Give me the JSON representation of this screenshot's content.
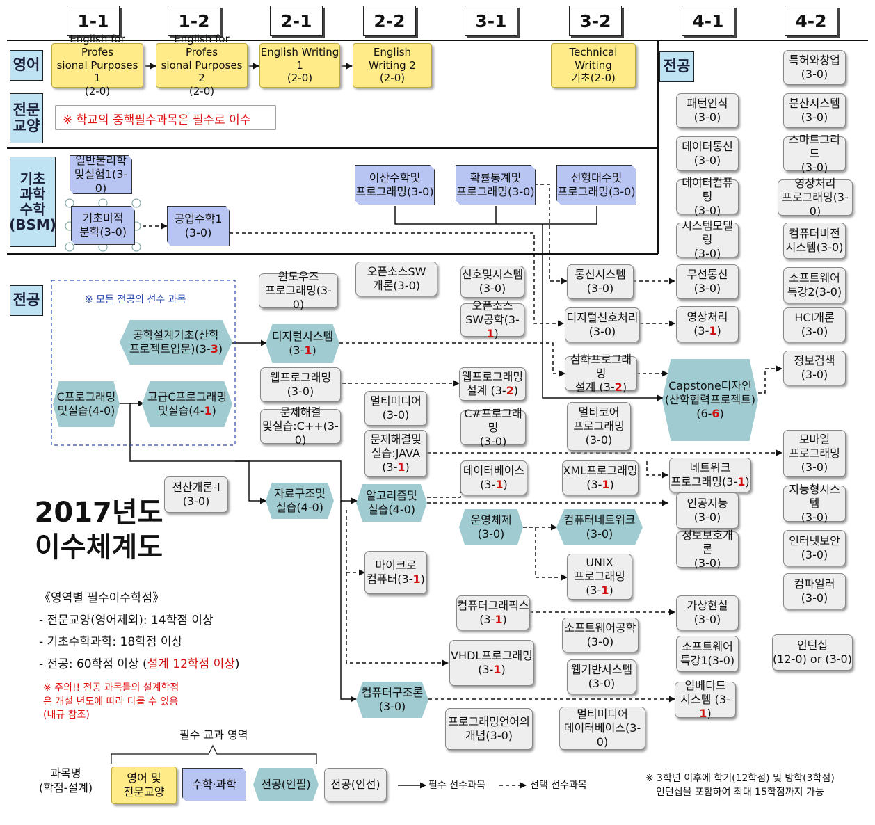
{
  "semesters": [
    "1-1",
    "1-2",
    "2-1",
    "2-2",
    "3-1",
    "3-2",
    "4-1",
    "4-2"
  ],
  "areas": {
    "english": "영어",
    "liberal": "전문\n교양",
    "bsm": "기초\n과학\n수학\n(BSM)",
    "major_left": "전공",
    "major_right": "전공"
  },
  "notes": {
    "required_liberal": "※ 학교의 중핵필수과목은 필수로 이수",
    "major_prereq": "※ 모든 전공의 선수 과목",
    "design_note": "※ 주의!! 전공 과목들의 설계학점\n은 개설 년도에 따라 다를 수 있음\n(내규 참조)",
    "internship": "※ 3학년 이후에 학기(12학점) 및 방학(3학점)\n인턴십을 포함하여 최대 15학점까지 가능"
  },
  "title": "2017년도\n이수체계도",
  "credits": {
    "heading": "《영역별 필수이수학점》",
    "line1": "- 전문교양(영어제외): 14학점 이상",
    "line2": "- 기초수학과학: 18학점 이상",
    "line3_prefix": "- 전공: 60학점 이상 (",
    "line3_red": "설계 12학점 이상",
    "line3_suffix": ")"
  },
  "legend": {
    "group": "필수 교과 영역",
    "course": "과목명\n(학점-설계)",
    "eng": "영어 및\n전문교양",
    "bsm": "수학·과학",
    "req": "전공(인필)",
    "elec": "전공(인선)",
    "solid": "필수 선수과목",
    "dashed": "선택 선수과목"
  },
  "courses": {
    "efp1": "English for Profes\nsional Purposes 1\n(2-0)",
    "efp2": "English for Profes\nsional Purposes 2\n(2-0)",
    "ew1": "English Writing 1\n(2-0)",
    "ew2": "English Writing 2\n(2-0)",
    "tw": "Technical Writing\n기초(2-0)",
    "phys": "일반물리학\n및실험1(3-0)",
    "calc": "기초미적\n분학(3-0)",
    "engmath": "공업수학1\n(3-0)",
    "discrete": "이산수학및\n프로그래밍(3-0)",
    "prob": "확률통계및\n프로그래밍(3-0)",
    "linear": "선형대수및\n프로그래밍(3-0)",
    "window": "윈도우즈\n프로그래밍(3-0)",
    "oss": "오픈소스SW\n개론(3-0)",
    "signal": "신호및시스템\n(3-0)",
    "ossp": "오픈소스\nSW공학(3-",
    "ossp_red": "1",
    "ossp_end": ")",
    "comm": "통신시스템\n(3-0)",
    "dsp": "디지털신호처리\n(3-0)",
    "wireless": "무선통신\n(3-0)",
    "imgproc": "영상처리\n(3-",
    "imgproc_red": "1",
    "design": "공학설계기초(산학\n프로젝트입문)(3-",
    "design_red": "3",
    "digital": "디지털시스템\n(3-",
    "digital_red": "1",
    "webp": "웹프로그래밍\n(3-0)",
    "advprog": "심화프로그래밍\n설계 (3-",
    "advprog_red": "2",
    "webdesign": "웹프로그래밍\n설계 (3-",
    "webdesign_red": "2",
    "capstone": "Capstone디자인\n(산학협력프로젝트)\n(6-",
    "capstone_red": "6",
    "cprog": "C프로그래밍\n및실습(4-0)",
    "advc": "고급C프로그래밍\n및실습(4-",
    "advc_red": "1",
    "psc": "문제해결\n및실습:C++(3-0)",
    "mm": "멀티미디어\n(3-0)",
    "csharp": "C#프로그래밍\n(3-0)",
    "multicore": "멀티코어\n프로그래밍\n(3-0)",
    "psjava": "문제해결및\n실습:JAVA\n(3-",
    "psjava_red": "1",
    "db": "데이터베이스\n(3-",
    "db_red": "1",
    "xml": "XML프로그래밍\n(3-",
    "xml_red": "1",
    "netprog": "네트워크\n프로그래밍(3-",
    "netprog_red": "1",
    "intro": "전산개론-I\n(3-0)",
    "ds": "자료구조및\n실습(4-0)",
    "algo": "알고리즘및\n실습(4-0)",
    "os": "운영체제\n(3-0)",
    "network": "컴퓨터네트워크\n(3-0)",
    "ai": "인공지능\n(3-0)",
    "security": "정보보호개론\n(3-0)",
    "micro": "마이크로\n컴퓨터(3-",
    "micro_red": "1",
    "unix": "UNIX\n프로그래밍\n(3-",
    "unix_red": "1",
    "graphics": "컴퓨터그래픽스\n(3-",
    "graphics_red": "1",
    "vr": "가상현실\n(3-0)",
    "se": "소프트웨어공학\n(3-0)",
    "swtopic1": "소프트웨어\n특강1(3-0)",
    "vhdl": "VHDL프로그래밍\n(3-",
    "vhdl_red": "1",
    "webbased": "웹기반시스템\n(3-0)",
    "arch": "컴퓨터구조론\n(3-0)",
    "embedded": "임베디드\n시스템 (3-",
    "embedded_red": "1",
    "pl": "프로그래밍언어의\n개념(3-0)",
    "mmdb": "멀티미디어\n데이터베이스(3-0)",
    "pattern": "패턴인식\n(3-0)",
    "datacomm": "데이터통신\n(3-0)",
    "datacomp": "데이터컴퓨팅\n(3-0)",
    "sysmodel": "시스템모델링\n(3-0)",
    "patent": "특허와창업\n(3-0)",
    "dist": "분산시스템\n(3-0)",
    "smartgrid": "스마트그리드\n(3-0)",
    "imgprog": "영상처리\n프로그래밍(3-0)",
    "vision": "컴퓨터비전\n시스템(3-0)",
    "swtopic2": "소프트웨어\n특강2(3-0)",
    "hci": "HCI개론\n(3-0)",
    "ir": "정보검색\n(3-0)",
    "mobile": "모바일\n프로그래밍\n(3-0)",
    "intel": "지능형시스템\n(3-0)",
    "inetsec": "인터넷보안\n(3-0)",
    "compiler": "컴파일러\n(3-0)",
    "intern": "인턴십\n(12-0) or (3-0)"
  }
}
